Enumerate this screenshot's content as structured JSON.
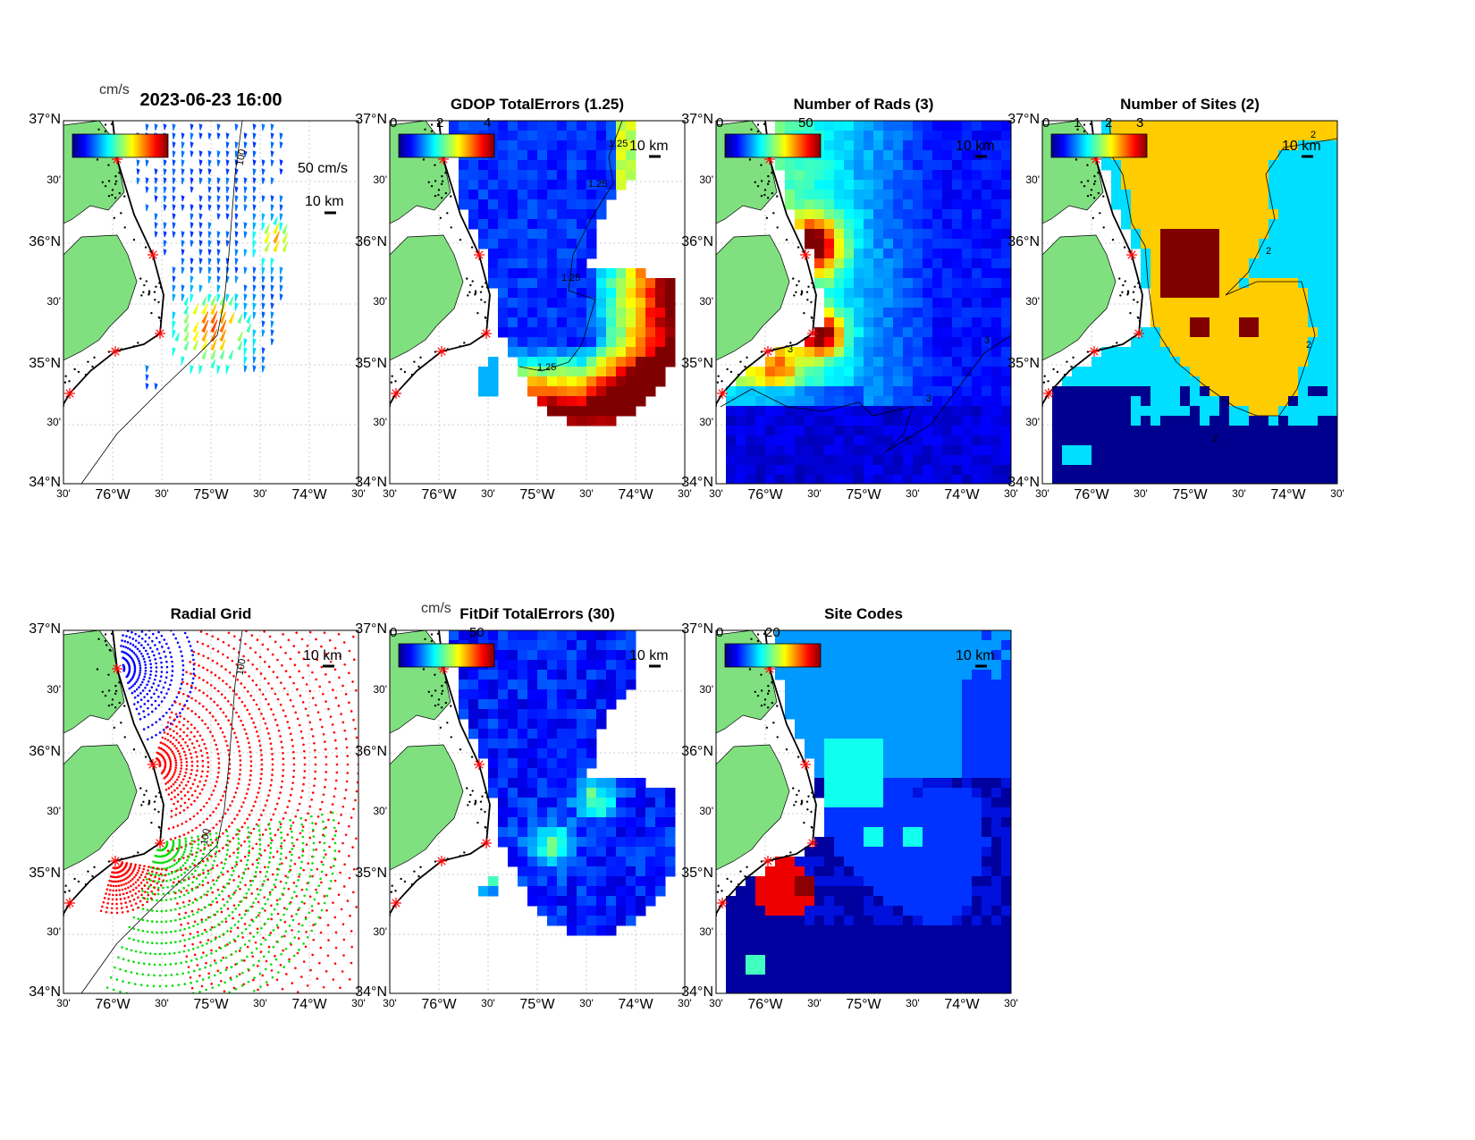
{
  "figure": {
    "timestamp": "2023-06-23 16:00"
  },
  "axes": {
    "lat_labels": [
      "37°N",
      "30'",
      "36°N",
      "30'",
      "35°N",
      "30'",
      "34°N"
    ],
    "lon_labels": [
      "30'",
      "76°W",
      "30'",
      "75°W",
      "30'",
      "74°W",
      "30'"
    ]
  },
  "panels": [
    {
      "id": "currents",
      "title": "2023-06-23 16:00",
      "cb_unit": "cm/s",
      "cb_ticks": [],
      "scale_km": "10 km",
      "vector_scale": "50 cm/s",
      "contour_labels": [
        "100"
      ]
    },
    {
      "id": "gdop",
      "title": "GDOP TotalErrors (1.25)",
      "cb_unit": "",
      "cb_ticks": [
        "0",
        "2",
        "4"
      ],
      "scale_km": "10 km",
      "contour_labels": [
        "1.25",
        "1.25",
        "1.25",
        "1.25"
      ]
    },
    {
      "id": "nrads",
      "title": "Number of Rads (3)",
      "cb_unit": "",
      "cb_ticks": [
        "0",
        "50"
      ],
      "scale_km": "10 km",
      "contour_labels": [
        "3",
        "3",
        "3"
      ]
    },
    {
      "id": "nsites",
      "title": "Number of Sites (2)",
      "cb_unit": "",
      "cb_ticks": [
        "0",
        "1",
        "2",
        "3"
      ],
      "scale_km": "10 km",
      "contour_labels": [
        "2",
        "2",
        "2",
        "2"
      ]
    },
    {
      "id": "radgrid",
      "title": "Radial Grid",
      "cb_unit": "",
      "cb_ticks": [],
      "scale_km": "10 km",
      "contour_labels": [
        "100",
        "100"
      ]
    },
    {
      "id": "fitdif",
      "title": "FitDif TotalErrors (30)",
      "cb_unit": "cm/s",
      "cb_ticks": [
        "0",
        "50"
      ],
      "scale_km": "10 km",
      "contour_labels": []
    },
    {
      "id": "sitecodes",
      "title": "Site Codes",
      "cb_unit": "",
      "cb_ticks": [
        "0",
        "20"
      ],
      "scale_km": "10 km",
      "contour_labels": []
    }
  ],
  "chart_data": [
    {
      "type": "heatmap",
      "title": "2023-06-23 16:00",
      "colorbar_label": "cm/s",
      "xlim": [
        -76.5,
        -73.5
      ],
      "ylim": [
        34,
        37
      ]
    },
    {
      "type": "heatmap",
      "title": "GDOP TotalErrors (1.25)",
      "colorbar_range": [
        0,
        4
      ],
      "xlim": [
        -76.5,
        -73.5
      ],
      "ylim": [
        34,
        37
      ]
    },
    {
      "type": "heatmap",
      "title": "Number of Rads (3)",
      "colorbar_range": [
        0,
        50
      ],
      "xlim": [
        -76.5,
        -73.5
      ],
      "ylim": [
        34,
        37
      ]
    },
    {
      "type": "heatmap",
      "title": "Number of Sites (2)",
      "colorbar_range": [
        0,
        3
      ],
      "xlim": [
        -76.5,
        -73.5
      ],
      "ylim": [
        34,
        37
      ]
    },
    {
      "type": "scatter",
      "title": "Radial Grid",
      "xlim": [
        -76.5,
        -73.5
      ],
      "ylim": [
        34,
        37
      ]
    },
    {
      "type": "heatmap",
      "title": "FitDif TotalErrors (30)",
      "colorbar_label": "cm/s",
      "colorbar_range": [
        0,
        50
      ],
      "xlim": [
        -76.5,
        -73.5
      ],
      "ylim": [
        34,
        37
      ]
    },
    {
      "type": "heatmap",
      "title": "Site Codes",
      "colorbar_range": [
        0,
        20
      ],
      "xlim": [
        -76.5,
        -73.5
      ],
      "ylim": [
        34,
        37
      ]
    }
  ],
  "colors": {
    "land": "#80e080",
    "site": "#ff0000",
    "frame": "#000000"
  }
}
